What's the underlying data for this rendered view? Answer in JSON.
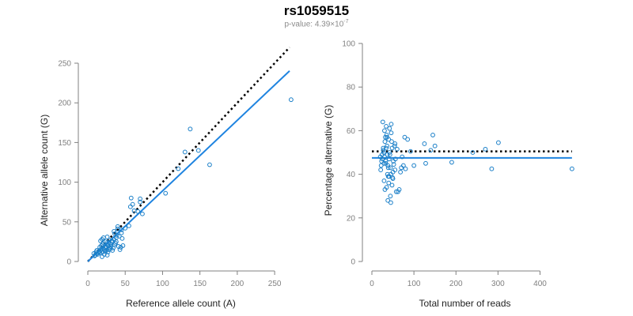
{
  "title": "rs1059515",
  "subtitle": {
    "prefix": "p-value: 4.39×10",
    "exponent": "-7"
  },
  "colors": {
    "points": "#1a7fc8",
    "fit_line": "#1f84e0",
    "reference_line": "#000000",
    "axis": "#808080"
  },
  "chart_data": [
    {
      "type": "scatter",
      "xlabel": "Reference allele count (A)",
      "ylabel": "Alternative allele count (G)",
      "xlim": [
        0,
        270
      ],
      "ylim": [
        0,
        250
      ],
      "xticks": [
        0,
        50,
        100,
        150,
        200,
        250
      ],
      "yticks": [
        0,
        50,
        100,
        150,
        200,
        250
      ],
      "x": [
        272,
        137,
        163,
        130,
        148,
        121,
        104,
        73,
        70,
        60,
        57,
        67,
        58,
        62,
        70,
        55,
        50,
        45,
        40,
        38,
        35,
        33,
        36,
        42,
        30,
        28,
        25,
        27,
        22,
        20,
        18,
        15,
        12,
        10,
        17,
        24,
        32,
        39,
        44,
        47,
        19,
        21,
        26,
        29,
        31,
        34,
        37,
        41,
        43,
        46,
        14,
        16,
        23,
        13,
        11,
        9,
        8,
        20,
        25,
        30,
        35,
        40,
        45,
        22,
        18,
        27,
        33,
        38,
        24,
        28,
        16,
        12,
        31,
        36,
        26,
        21,
        19,
        23,
        29,
        17
      ],
      "y": [
        204,
        167,
        122,
        138,
        140,
        117,
        86,
        60,
        79,
        72,
        69,
        63,
        80,
        64,
        75,
        45,
        42,
        40,
        44,
        30,
        28,
        25,
        35,
        32,
        22,
        24,
        18,
        20,
        15,
        12,
        16,
        13,
        10,
        8,
        14,
        19,
        26,
        33,
        18,
        20,
        28,
        30,
        31,
        27,
        21,
        17,
        23,
        19,
        15,
        29,
        11,
        18,
        25,
        9,
        12,
        7,
        10,
        22,
        14,
        16,
        38,
        41,
        36,
        9,
        20,
        12,
        14,
        25,
        17,
        15,
        11,
        14,
        19,
        21,
        8,
        24,
        6,
        13,
        18,
        26
      ],
      "fit_line": {
        "slope": 0.89,
        "intercept": 0
      },
      "reference_line": {
        "slope": 1.0,
        "intercept": 0
      }
    },
    {
      "type": "scatter",
      "xlabel": "Total number of reads",
      "ylabel": "Percentage alternative (G)",
      "xlim": [
        0,
        480
      ],
      "ylim": [
        0,
        100
      ],
      "xticks": [
        0,
        100,
        200,
        300,
        400
      ],
      "yticks": [
        0,
        20,
        40,
        60,
        80,
        100
      ],
      "x": [
        476,
        301,
        285,
        270,
        240,
        190,
        150,
        145,
        140,
        128,
        125,
        100,
        92,
        85,
        80,
        78,
        75,
        72,
        70,
        68,
        65,
        62,
        60,
        58,
        56,
        55,
        54,
        52,
        50,
        49,
        48,
        47,
        46,
        45,
        44,
        43,
        42,
        41,
        40,
        39,
        38,
        37,
        36,
        35,
        34,
        33,
        32,
        31,
        30,
        29,
        28,
        27,
        26,
        25,
        24,
        23,
        22,
        21,
        20,
        40,
        45,
        50,
        35,
        30,
        42,
        48,
        38,
        33,
        55,
        27,
        36,
        44,
        51,
        29,
        39,
        46,
        41,
        34,
        31,
        37
      ],
      "y": [
        42.5,
        54.5,
        42.5,
        51.5,
        50,
        45.5,
        53,
        58,
        51,
        45,
        54,
        44,
        50.5,
        56,
        42.5,
        57,
        44,
        48,
        43,
        41,
        33,
        32,
        51.5,
        32,
        47,
        42,
        53,
        44.5,
        41,
        38.5,
        52,
        55,
        63,
        27,
        30,
        49,
        50,
        39,
        36,
        43,
        44,
        40,
        53,
        58,
        62,
        46,
        57,
        55,
        60,
        45,
        50,
        52,
        64,
        47,
        49,
        46,
        44,
        42,
        48,
        56,
        40,
        38,
        34,
        48,
        61,
        35,
        28,
        45,
        54,
        51,
        57,
        43,
        46,
        37,
        39,
        59,
        47,
        52,
        33,
        49
      ],
      "fit_line": {
        "y": 47.5
      },
      "reference_line": {
        "y": 50.5
      }
    }
  ]
}
